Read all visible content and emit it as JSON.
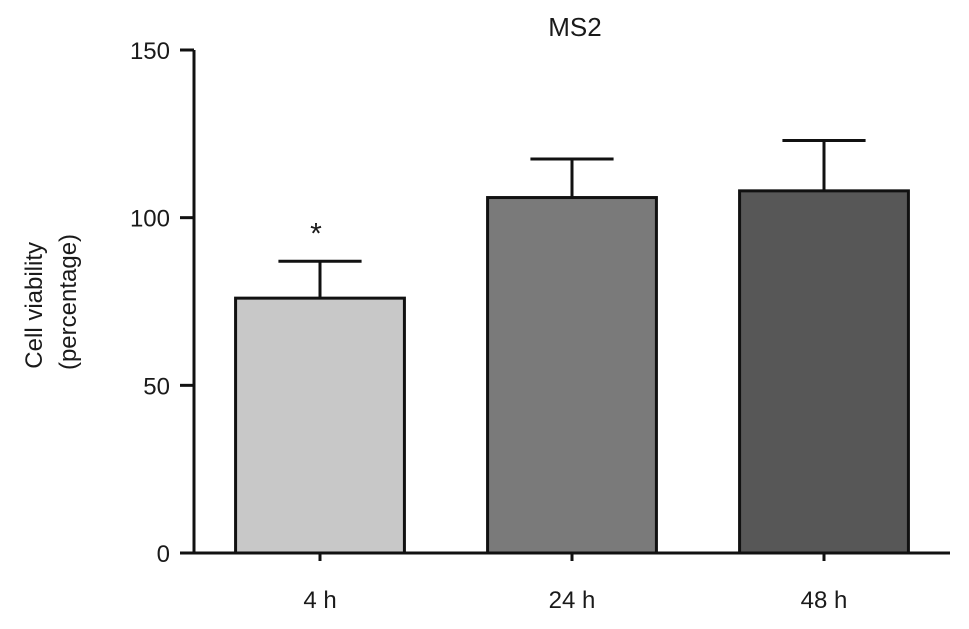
{
  "chart_data": {
    "type": "bar",
    "title": "MS2",
    "xlabel": "",
    "ylabel_lines": [
      "Cell viability",
      "(percentage)"
    ],
    "categories": [
      "4 h",
      "24 h",
      "48 h"
    ],
    "values": [
      76,
      106,
      108
    ],
    "errors": [
      11,
      11.5,
      15
    ],
    "annotations": [
      "*",
      "",
      ""
    ],
    "bar_colors": [
      "#c8c8c8",
      "#7a7a7a",
      "#575757"
    ],
    "ylim": [
      0,
      150
    ],
    "yticks": [
      0,
      50,
      100,
      150
    ],
    "grid": false,
    "legend": "none"
  }
}
